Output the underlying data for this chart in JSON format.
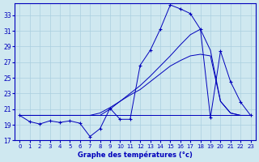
{
  "xlabel": "Graphe des températures (°c)",
  "xlim": [
    -0.5,
    23.5
  ],
  "ylim": [
    17,
    34.5
  ],
  "yticks": [
    17,
    19,
    21,
    23,
    25,
    27,
    29,
    31,
    33
  ],
  "xticks": [
    0,
    1,
    2,
    3,
    4,
    5,
    6,
    7,
    8,
    9,
    10,
    11,
    12,
    13,
    14,
    15,
    16,
    17,
    18,
    19,
    20,
    21,
    22,
    23
  ],
  "background_color": "#cfe8f0",
  "grid_color": "#aacfdf",
  "line_color": "#0000bb",
  "hours": [
    0,
    1,
    2,
    3,
    4,
    5,
    6,
    7,
    8,
    9,
    10,
    11,
    12,
    13,
    14,
    15,
    16,
    17,
    18,
    19,
    20,
    21,
    22,
    23
  ],
  "temp_actual": [
    20.2,
    19.4,
    19.1,
    19.5,
    19.3,
    19.5,
    19.2,
    17.5,
    18.5,
    21.1,
    19.7,
    19.7,
    26.6,
    28.5,
    31.2,
    34.3,
    33.8,
    33.2,
    31.2,
    19.9,
    28.4,
    24.5,
    21.9,
    20.2
  ],
  "temp_min_flat": [
    20.2,
    20.2,
    20.2,
    20.2,
    20.2,
    20.2,
    20.2,
    20.2,
    20.2,
    20.2,
    20.2,
    20.2,
    20.2,
    20.2,
    20.2,
    20.2,
    20.2,
    20.2,
    20.2,
    20.2,
    20.2,
    20.2,
    20.2,
    20.2
  ],
  "temp_max": [
    20.2,
    20.2,
    20.2,
    20.2,
    20.2,
    20.2,
    20.2,
    20.2,
    20.2,
    21.0,
    22.0,
    23.0,
    24.0,
    25.2,
    26.5,
    27.8,
    29.2,
    30.5,
    31.2,
    28.5,
    22.0,
    20.5,
    20.2,
    20.2
  ],
  "temp_mean": [
    20.2,
    20.2,
    20.2,
    20.2,
    20.2,
    20.2,
    20.2,
    20.2,
    20.5,
    21.2,
    22.0,
    22.8,
    23.5,
    24.5,
    25.5,
    26.5,
    27.2,
    27.8,
    28.0,
    27.8,
    22.0,
    20.5,
    20.2,
    20.2
  ]
}
